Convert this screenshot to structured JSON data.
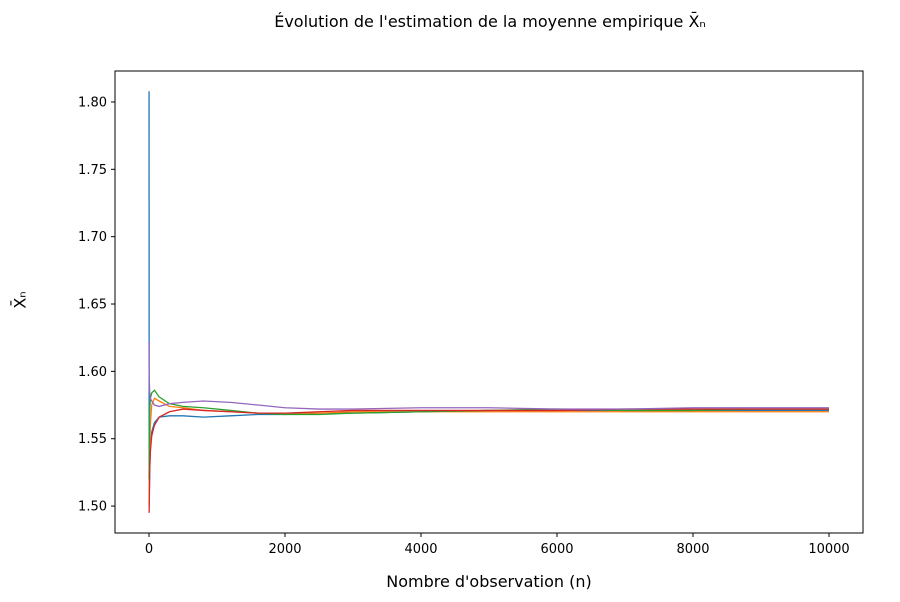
{
  "chart_data": {
    "type": "line",
    "title": "Évolution de l'estimation de la moyenne empirique X̄ₙ",
    "xlabel": "Nombre d'observation (n)",
    "ylabel": "X̄ₙ",
    "xlim": [
      -500,
      10500
    ],
    "ylim": [
      1.48,
      1.823
    ],
    "xticks": [
      0,
      2000,
      4000,
      6000,
      8000,
      10000
    ],
    "xtick_labels": [
      "0",
      "2000",
      "4000",
      "6000",
      "8000",
      "10000"
    ],
    "yticks": [
      1.5,
      1.55,
      1.6,
      1.65,
      1.7,
      1.75,
      1.8
    ],
    "ytick_labels": [
      "1.50",
      "1.55",
      "1.60",
      "1.65",
      "1.70",
      "1.75",
      "1.80"
    ],
    "grid": false,
    "legend": "none",
    "series": [
      {
        "color": "#1f77b4",
        "x": [
          1,
          2,
          5,
          10,
          20,
          40,
          80,
          150,
          300,
          500,
          800,
          1200,
          1600,
          2000,
          2500,
          3000,
          4000,
          5000,
          6000,
          7000,
          8000,
          9000,
          10000
        ],
        "y": [
          1.808,
          1.53,
          1.51,
          1.525,
          1.545,
          1.555,
          1.562,
          1.566,
          1.567,
          1.567,
          1.566,
          1.567,
          1.568,
          1.568,
          1.569,
          1.569,
          1.57,
          1.571,
          1.571,
          1.571,
          1.571,
          1.571,
          1.571
        ]
      },
      {
        "color": "#ff7f0e",
        "x": [
          1,
          5,
          10,
          20,
          40,
          80,
          150,
          300,
          500,
          800,
          1200,
          1600,
          2000,
          2500,
          3000,
          4000,
          5000,
          6000,
          7000,
          8000,
          9000,
          10000
        ],
        "y": [
          1.5,
          1.52,
          1.54,
          1.56,
          1.575,
          1.58,
          1.578,
          1.574,
          1.573,
          1.571,
          1.57,
          1.569,
          1.569,
          1.569,
          1.57,
          1.57,
          1.57,
          1.57,
          1.57,
          1.57,
          1.57,
          1.57
        ]
      },
      {
        "color": "#2ca02c",
        "x": [
          1,
          5,
          10,
          20,
          40,
          80,
          150,
          300,
          500,
          800,
          1200,
          1600,
          2000,
          2500,
          3000,
          4000,
          5000,
          6000,
          7000,
          8000,
          9000,
          10000
        ],
        "y": [
          1.52,
          1.55,
          1.57,
          1.58,
          1.584,
          1.586,
          1.581,
          1.576,
          1.574,
          1.573,
          1.571,
          1.569,
          1.568,
          1.568,
          1.569,
          1.57,
          1.571,
          1.572,
          1.571,
          1.571,
          1.572,
          1.572
        ]
      },
      {
        "color": "#d62728",
        "x": [
          1,
          3,
          5,
          10,
          20,
          40,
          80,
          150,
          300,
          500,
          800,
          1200,
          1600,
          2000,
          2500,
          3000,
          4000,
          5000,
          6000,
          7000,
          8000,
          9000,
          10000
        ],
        "y": [
          1.495,
          1.497,
          1.505,
          1.525,
          1.54,
          1.552,
          1.56,
          1.566,
          1.57,
          1.572,
          1.571,
          1.57,
          1.569,
          1.569,
          1.57,
          1.571,
          1.571,
          1.571,
          1.571,
          1.572,
          1.572,
          1.572,
          1.572
        ]
      },
      {
        "color": "#9467bd",
        "x": [
          1,
          2,
          5,
          10,
          20,
          40,
          80,
          150,
          300,
          500,
          800,
          1200,
          1600,
          2000,
          2500,
          3000,
          4000,
          5000,
          6000,
          7000,
          8000,
          9000,
          10000
        ],
        "y": [
          1.622,
          1.6,
          1.592,
          1.585,
          1.58,
          1.578,
          1.575,
          1.574,
          1.576,
          1.577,
          1.578,
          1.577,
          1.575,
          1.573,
          1.572,
          1.572,
          1.573,
          1.573,
          1.572,
          1.572,
          1.573,
          1.573,
          1.573
        ]
      }
    ]
  }
}
